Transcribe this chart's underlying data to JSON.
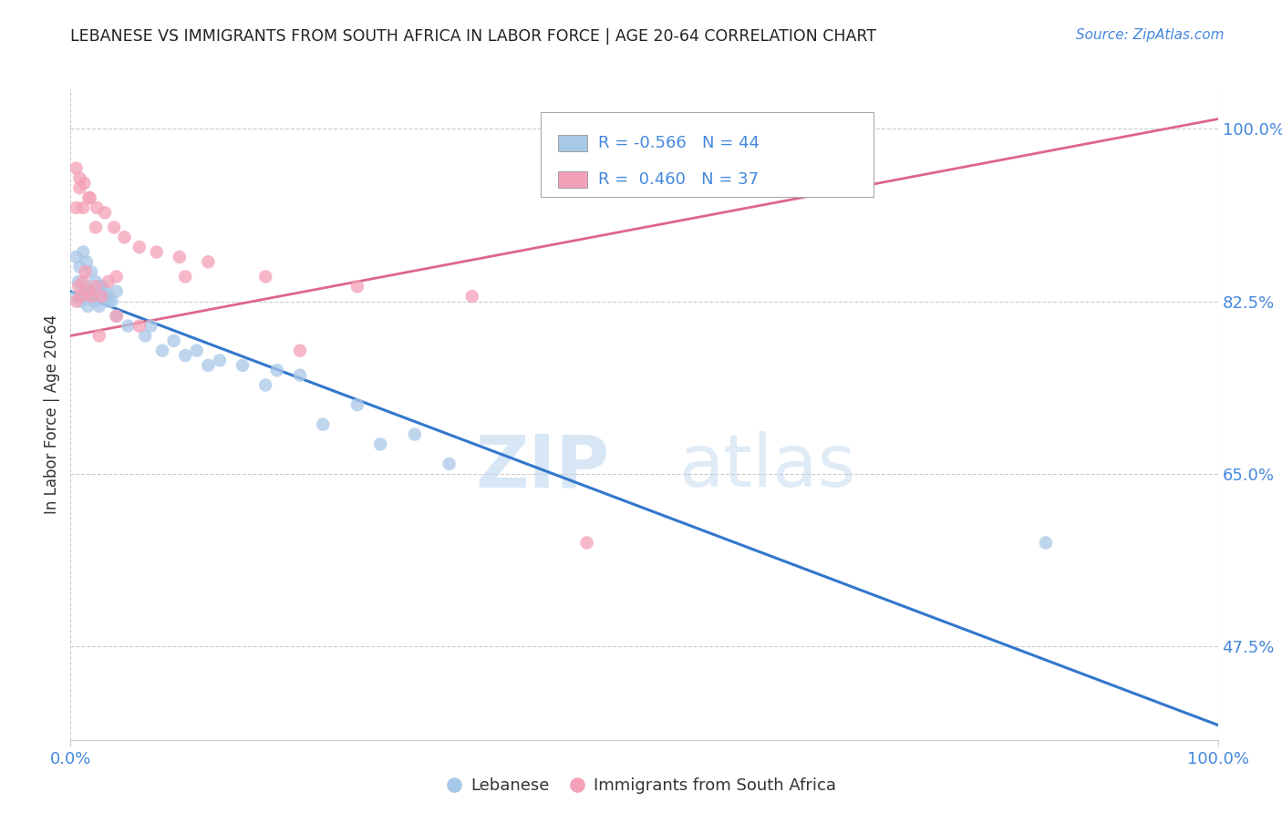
{
  "title": "LEBANESE VS IMMIGRANTS FROM SOUTH AFRICA IN LABOR FORCE | AGE 20-64 CORRELATION CHART",
  "source": "Source: ZipAtlas.com",
  "ylabel": "In Labor Force | Age 20-64",
  "x_range": [
    0.0,
    1.0
  ],
  "y_range": [
    0.38,
    1.04
  ],
  "legend_labels": [
    "Lebanese",
    "Immigrants from South Africa"
  ],
  "R_blue": -0.566,
  "N_blue": 44,
  "R_pink": 0.46,
  "N_pink": 37,
  "color_blue": "#a8c8e8",
  "color_pink": "#f4a0b8",
  "line_color_blue": "#3377cc",
  "line_color_pink": "#dd6688",
  "watermark_zip": "ZIP",
  "watermark_atlas": "atlas",
  "title_color": "#222222",
  "axis_label_color": "#4488dd",
  "y_ticks": [
    0.475,
    0.65,
    0.825,
    1.0
  ],
  "y_tick_labels": [
    "47.5%",
    "65.0%",
    "82.5%",
    "100.0%"
  ],
  "blue_line_x": [
    0.0,
    1.0
  ],
  "blue_line_y": [
    0.835,
    0.395
  ],
  "pink_line_x": [
    0.0,
    1.0
  ],
  "pink_line_y": [
    0.79,
    1.01
  ],
  "blue_scatter_x": [
    0.005,
    0.007,
    0.009,
    0.011,
    0.013,
    0.015,
    0.017,
    0.019,
    0.021,
    0.023,
    0.025,
    0.027,
    0.03,
    0.033,
    0.036,
    0.04,
    0.005,
    0.008,
    0.011,
    0.014,
    0.018,
    0.022,
    0.027,
    0.033,
    0.04,
    0.05,
    0.065,
    0.08,
    0.1,
    0.12,
    0.07,
    0.09,
    0.11,
    0.15,
    0.18,
    0.2,
    0.25,
    0.17,
    0.3,
    0.13,
    0.22,
    0.27,
    0.85,
    0.33
  ],
  "blue_scatter_y": [
    0.83,
    0.845,
    0.825,
    0.835,
    0.84,
    0.82,
    0.83,
    0.835,
    0.825,
    0.83,
    0.82,
    0.84,
    0.835,
    0.83,
    0.825,
    0.835,
    0.87,
    0.86,
    0.875,
    0.865,
    0.855,
    0.845,
    0.84,
    0.825,
    0.81,
    0.8,
    0.79,
    0.775,
    0.77,
    0.76,
    0.8,
    0.785,
    0.775,
    0.76,
    0.755,
    0.75,
    0.72,
    0.74,
    0.69,
    0.765,
    0.7,
    0.68,
    0.58,
    0.66
  ],
  "pink_scatter_x": [
    0.005,
    0.007,
    0.009,
    0.011,
    0.013,
    0.015,
    0.018,
    0.022,
    0.027,
    0.033,
    0.04,
    0.005,
    0.008,
    0.011,
    0.016,
    0.022,
    0.005,
    0.008,
    0.012,
    0.017,
    0.023,
    0.03,
    0.038,
    0.047,
    0.06,
    0.075,
    0.095,
    0.12,
    0.17,
    0.25,
    0.35,
    0.025,
    0.04,
    0.06,
    0.1,
    0.45,
    0.2
  ],
  "pink_scatter_y": [
    0.825,
    0.84,
    0.83,
    0.845,
    0.855,
    0.835,
    0.83,
    0.84,
    0.83,
    0.845,
    0.85,
    0.92,
    0.94,
    0.92,
    0.93,
    0.9,
    0.96,
    0.95,
    0.945,
    0.93,
    0.92,
    0.915,
    0.9,
    0.89,
    0.88,
    0.875,
    0.87,
    0.865,
    0.85,
    0.84,
    0.83,
    0.79,
    0.81,
    0.8,
    0.85,
    0.58,
    0.775
  ]
}
